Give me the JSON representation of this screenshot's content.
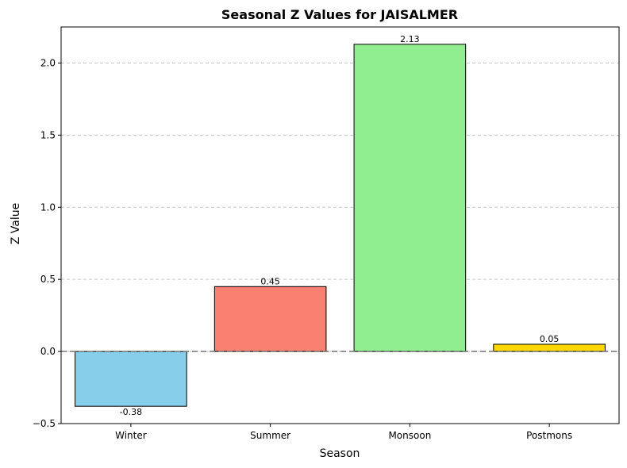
{
  "chart_data": {
    "type": "bar",
    "title": "Seasonal Z Values for JAISALMER",
    "xlabel": "Season",
    "ylabel": "Z Value",
    "categories": [
      "Winter",
      "Summer",
      "Monsoon",
      "Postmons"
    ],
    "values": [
      -0.38,
      0.45,
      2.13,
      0.05
    ],
    "value_labels": [
      "-0.38",
      "0.45",
      "2.13",
      "0.05"
    ],
    "colors": [
      "#87ceeb",
      "#fa8072",
      "#90ee90",
      "#ffd700"
    ],
    "ylim": [
      -0.5,
      2.25
    ],
    "yticks": [
      -0.5,
      0.0,
      0.5,
      1.0,
      1.5,
      2.0
    ],
    "ytick_labels": [
      "−0.5",
      "0.0",
      "0.5",
      "1.0",
      "1.5",
      "2.0"
    ],
    "grid": "y-dashed",
    "reference_line": 0
  }
}
